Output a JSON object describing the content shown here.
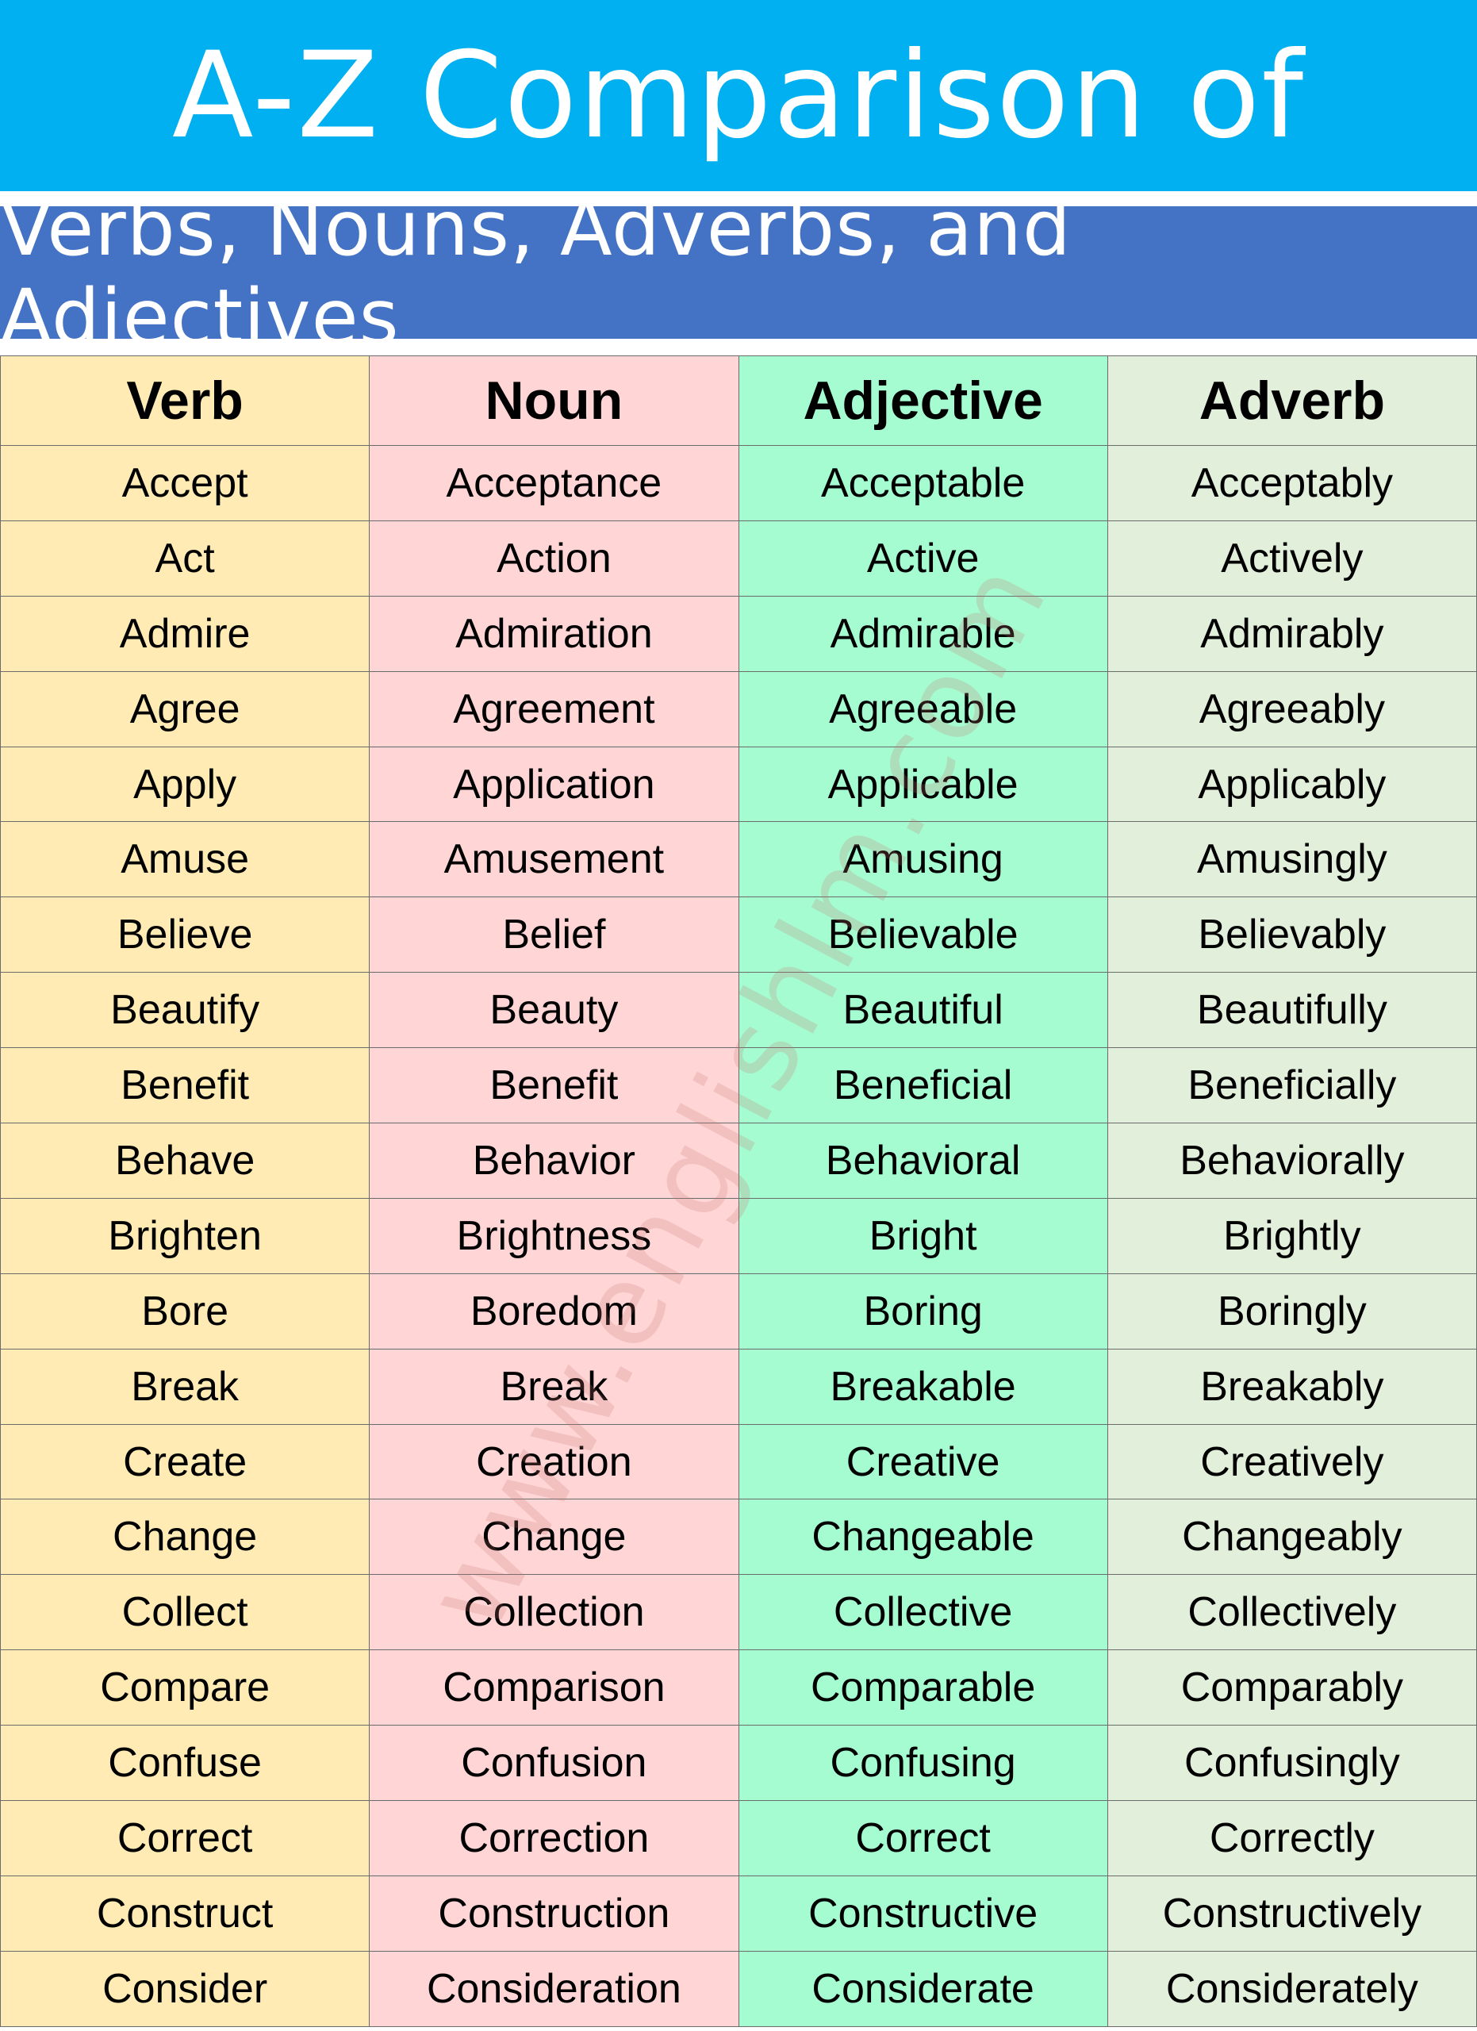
{
  "header": {
    "title": "A-Z Comparison of",
    "subtitle": "Verbs, Nouns, Adverbs, and Adjectives"
  },
  "colors": {
    "title_bg": "#00B0F0",
    "subtitle_bg": "#4472C4",
    "verb_col": "#FFEBB3",
    "noun_col": "#FFD5D5",
    "adjective_col": "#A4FCD0",
    "adverb_col": "#E2EFDA"
  },
  "watermark": "www.englishlm.com",
  "table": {
    "columns": [
      "Verb",
      "Noun",
      "Adjective",
      "Adverb"
    ],
    "rows": [
      [
        "Accept",
        "Acceptance",
        "Acceptable",
        "Acceptably"
      ],
      [
        "Act",
        "Action",
        "Active",
        "Actively"
      ],
      [
        "Admire",
        "Admiration",
        "Admirable",
        "Admirably"
      ],
      [
        "Agree",
        "Agreement",
        "Agreeable",
        "Agreeably"
      ],
      [
        "Apply",
        "Application",
        "Applicable",
        "Applicably"
      ],
      [
        "Amuse",
        "Amusement",
        "Amusing",
        "Amusingly"
      ],
      [
        "Believe",
        "Belief",
        "Believable",
        "Believably"
      ],
      [
        "Beautify",
        "Beauty",
        "Beautiful",
        "Beautifully"
      ],
      [
        "Benefit",
        "Benefit",
        "Beneficial",
        "Beneficially"
      ],
      [
        "Behave",
        "Behavior",
        "Behavioral",
        "Behaviorally"
      ],
      [
        "Brighten",
        "Brightness",
        "Bright",
        "Brightly"
      ],
      [
        "Bore",
        "Boredom",
        "Boring",
        "Boringly"
      ],
      [
        "Break",
        "Break",
        "Breakable",
        "Breakably"
      ],
      [
        "Create",
        "Creation",
        "Creative",
        "Creatively"
      ],
      [
        "Change",
        "Change",
        "Changeable",
        "Changeably"
      ],
      [
        "Collect",
        "Collection",
        "Collective",
        "Collectively"
      ],
      [
        "Compare",
        "Comparison",
        "Comparable",
        "Comparably"
      ],
      [
        "Confuse",
        "Confusion",
        "Confusing",
        "Confusingly"
      ],
      [
        "Correct",
        "Correction",
        "Correct",
        "Correctly"
      ],
      [
        "Construct",
        "Construction",
        "Constructive",
        "Constructively"
      ],
      [
        "Consider",
        "Consideration",
        "Considerate",
        "Considerately"
      ]
    ]
  }
}
